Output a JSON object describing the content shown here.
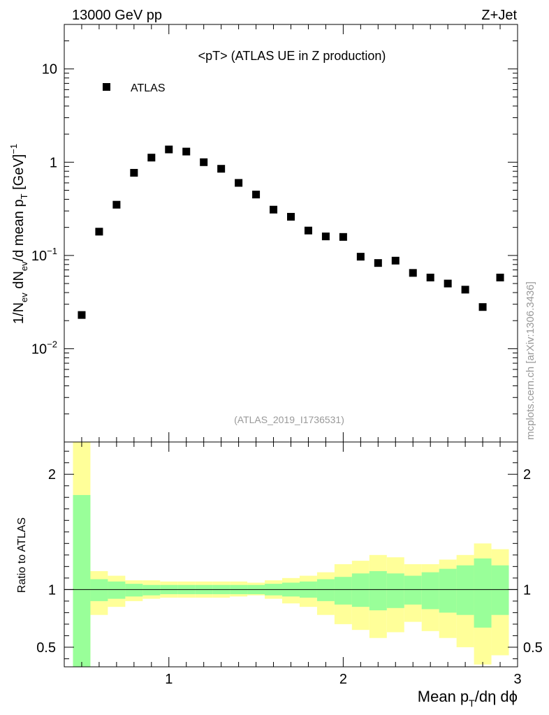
{
  "header": {
    "energy_label": "13000 GeV pp",
    "process_label": "Z+Jet",
    "side_label": "mcplots.cern.ch [arXiv:1306.3436]"
  },
  "chart_data": [
    {
      "type": "scatter",
      "panel": "main",
      "title": "<pT> (ATLAS UE in Z production)",
      "analysis_label": "(ATLAS_2019_I1736531)",
      "xlabel": "Mean p_T/dη dφ",
      "ylabel": "1/N_ev dN_ev/d mean p_T [GeV]^-1",
      "yscale": "log",
      "xlim": [
        0.4,
        3.0
      ],
      "ylim": [
        0.001,
        30
      ],
      "y_ticks": [
        {
          "value": 10,
          "label": "10"
        },
        {
          "value": 1,
          "label": "1"
        },
        {
          "value": 0.1,
          "label": "10",
          "exp": "−1"
        },
        {
          "value": 0.01,
          "label": "10",
          "exp": "−2"
        }
      ],
      "legend": {
        "position": "top-left",
        "entries": [
          "ATLAS"
        ]
      },
      "series": [
        {
          "name": "ATLAS",
          "marker": "square",
          "color": "#000000",
          "x": [
            0.5,
            0.6,
            0.7,
            0.8,
            0.9,
            1.0,
            1.1,
            1.2,
            1.3,
            1.4,
            1.5,
            1.6,
            1.7,
            1.8,
            1.9,
            2.0,
            2.1,
            2.2,
            2.3,
            2.4,
            2.5,
            2.6,
            2.7,
            2.8,
            2.9
          ],
          "y": [
            0.023,
            0.18,
            0.35,
            0.77,
            1.12,
            1.37,
            1.3,
            1.0,
            0.85,
            0.6,
            0.45,
            0.31,
            0.26,
            0.185,
            0.16,
            0.158,
            0.097,
            0.083,
            0.088,
            0.065,
            0.058,
            0.05,
            0.043,
            0.028,
            0.058
          ]
        }
      ]
    },
    {
      "type": "area",
      "panel": "ratio",
      "ylabel": "Ratio to ATLAS",
      "xlim": [
        0.4,
        3.0
      ],
      "ylim": [
        0.33,
        2.28
      ],
      "x_ticks": [
        {
          "value": 1,
          "label": "1"
        },
        {
          "value": 2,
          "label": "2"
        },
        {
          "value": 3,
          "label": "3"
        }
      ],
      "y_ticks": [
        {
          "value": 0.5,
          "label": "0.5"
        },
        {
          "value": 1,
          "label": "1"
        },
        {
          "value": 2,
          "label": "2"
        }
      ],
      "reference_line": 1.0,
      "bin_edges": [
        0.45,
        0.55,
        0.65,
        0.75,
        0.85,
        0.95,
        1.05,
        1.15,
        1.25,
        1.35,
        1.45,
        1.55,
        1.65,
        1.75,
        1.85,
        1.95,
        2.05,
        2.15,
        2.25,
        2.35,
        2.45,
        2.55,
        2.65,
        2.75,
        2.85,
        2.95
      ],
      "bands": [
        {
          "name": "total uncertainty",
          "color": "#ffff99",
          "low": [
            0.33,
            0.78,
            0.85,
            0.9,
            0.92,
            0.93,
            0.93,
            0.93,
            0.93,
            0.94,
            0.95,
            0.92,
            0.88,
            0.85,
            0.78,
            0.7,
            0.65,
            0.58,
            0.63,
            0.72,
            0.64,
            0.58,
            0.5,
            0.35,
            0.43
          ],
          "high": [
            2.28,
            1.16,
            1.12,
            1.08,
            1.08,
            1.07,
            1.07,
            1.07,
            1.07,
            1.07,
            1.06,
            1.08,
            1.1,
            1.12,
            1.15,
            1.22,
            1.25,
            1.3,
            1.28,
            1.22,
            1.22,
            1.26,
            1.3,
            1.4,
            1.35
          ]
        },
        {
          "name": "statistical uncertainty",
          "color": "#99ff99",
          "low": [
            0.33,
            0.9,
            0.92,
            0.94,
            0.95,
            0.96,
            0.96,
            0.96,
            0.96,
            0.96,
            0.96,
            0.95,
            0.94,
            0.93,
            0.9,
            0.87,
            0.85,
            0.82,
            0.84,
            0.87,
            0.83,
            0.8,
            0.78,
            0.67,
            0.78
          ],
          "high": [
            1.82,
            1.09,
            1.07,
            1.05,
            1.04,
            1.04,
            1.04,
            1.04,
            1.04,
            1.04,
            1.04,
            1.05,
            1.06,
            1.07,
            1.09,
            1.11,
            1.14,
            1.16,
            1.14,
            1.12,
            1.15,
            1.18,
            1.21,
            1.27,
            1.21
          ]
        }
      ]
    }
  ]
}
